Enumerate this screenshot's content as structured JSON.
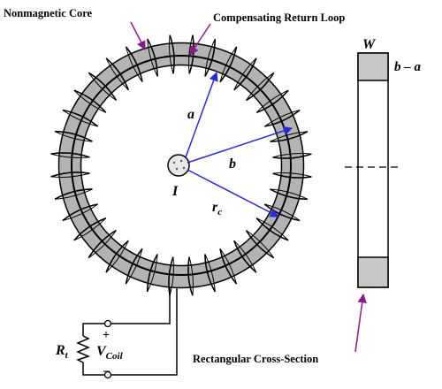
{
  "labels": {
    "core": "Nonmagnetic Core",
    "return_loop": "Compensating Return Loop",
    "cross_section": "Rectangular Cross-Section",
    "current": "I",
    "radius_a": "a",
    "radius_b": "b",
    "radius_c_main": "r",
    "radius_c_sub": "c",
    "width": "W",
    "height": "b – a",
    "resistor_main": "R",
    "resistor_sub": "t",
    "voltage_main": "V",
    "voltage_sub": "Coil",
    "plus": "+",
    "minus": "–"
  },
  "colors": {
    "core_fill": "#b3b3b3",
    "dimension_arrows": "#2a2ad0",
    "callout_arrows": "#8a1a8a",
    "wire": "#000000",
    "current_conductor": "#e8e8e8"
  },
  "coil": {
    "turns": 36
  }
}
